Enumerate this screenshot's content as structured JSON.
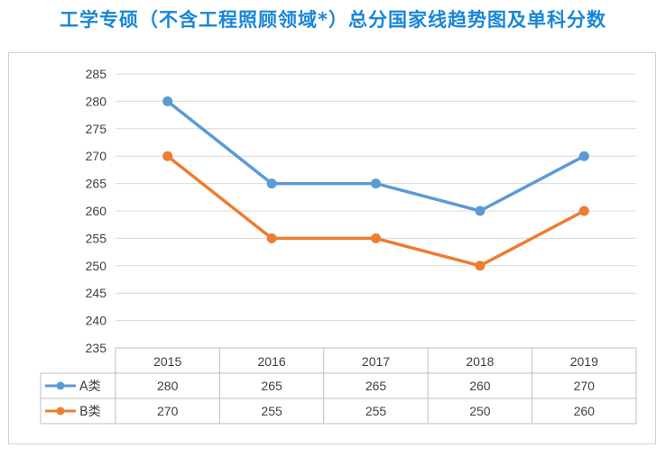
{
  "chart_data": {
    "type": "line",
    "title": "工学专硕（不含工程照顾领域*）总分国家线趋势图及单科分数",
    "categories": [
      "2015",
      "2016",
      "2017",
      "2018",
      "2019"
    ],
    "series": [
      {
        "name": "A类",
        "color": "#5b9bd5",
        "values": [
          280,
          265,
          265,
          260,
          270
        ]
      },
      {
        "name": "B类",
        "color": "#ed7d31",
        "values": [
          270,
          255,
          255,
          250,
          260
        ]
      }
    ],
    "ylim": [
      235,
      285
    ],
    "yticks": [
      235,
      240,
      245,
      250,
      255,
      260,
      265,
      270,
      275,
      280,
      285
    ],
    "grid": true,
    "legend": "data-table-left"
  }
}
